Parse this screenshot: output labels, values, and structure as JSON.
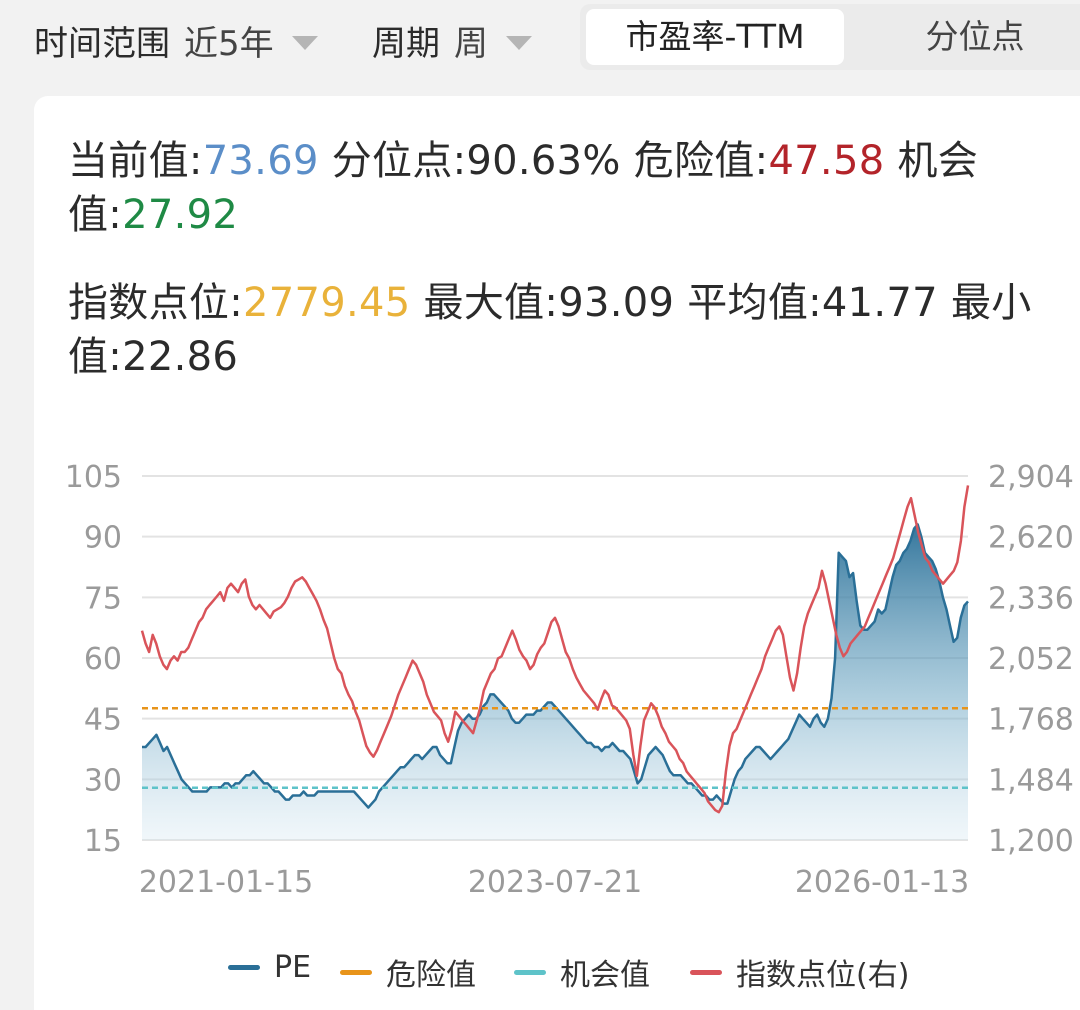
{
  "filters": {
    "range_label": "时间范围",
    "range_value": "近5年",
    "period_label": "周期",
    "period_value": "周"
  },
  "tabs": [
    {
      "label": "市盈率-TTM",
      "active": true
    },
    {
      "label": "分位点",
      "active": false
    }
  ],
  "stats": {
    "current_label": "当前值:",
    "current_value": "73.69",
    "percentile_label": "分位点:",
    "percentile_value": "90.63%",
    "danger_label": "危险值:",
    "danger_value": "47.58",
    "opportunity_label_a": "机会",
    "opportunity_label_b": "值:",
    "opportunity_value": "27.92",
    "index_label": "指数点位:",
    "index_value": "2779.45",
    "max_label": "最大值:",
    "max_value": "93.09",
    "avg_label": "平均值:",
    "avg_value": "41.77",
    "min_label_a": "最小",
    "min_label_b": "值:",
    "min_value": "22.86"
  },
  "colors": {
    "pe": "#2a6f97",
    "danger": "#e8941a",
    "opportunity": "#5ec3c9",
    "index": "#d9545a",
    "current": "#5b8ec8",
    "danger_text": "#b3242a",
    "opportunity_text": "#1f8a45",
    "index_text": "#e9b23a"
  },
  "chart_data": {
    "type": "line",
    "x_ticks": [
      "2021-01-15",
      "2023-07-21",
      "2026-01-13"
    ],
    "y_left": {
      "ticks": [
        "105",
        "90",
        "75",
        "60",
        "45",
        "30",
        "15"
      ],
      "min": 15,
      "max": 105
    },
    "y_right": {
      "ticks": [
        "2,904",
        "2,620",
        "2,336",
        "2,052",
        "1,768",
        "1,484",
        "1,200"
      ],
      "min": 1200,
      "max": 2904
    },
    "grid": true,
    "legend_position": "bottom",
    "series": [
      {
        "name": "PE",
        "axis": "left",
        "style": "area",
        "values": [
          38,
          38,
          39,
          40,
          41,
          39,
          37,
          38,
          36,
          34,
          32,
          30,
          29,
          28,
          27,
          27,
          27,
          27,
          27,
          28,
          28,
          28,
          28,
          29,
          29,
          28,
          29,
          29,
          30,
          31,
          31,
          32,
          31,
          30,
          29,
          29,
          28,
          27,
          27,
          26,
          25,
          25,
          26,
          26,
          26,
          27,
          26,
          26,
          26,
          27,
          27,
          27,
          27,
          27,
          27,
          27,
          27,
          27,
          27,
          27,
          26,
          25,
          24,
          23,
          24,
          25,
          27,
          28,
          29,
          30,
          31,
          32,
          33,
          33,
          34,
          35,
          36,
          36,
          35,
          36,
          37,
          38,
          38,
          36,
          35,
          34,
          34,
          38,
          42,
          44,
          45,
          46,
          45,
          45,
          46,
          48,
          49,
          51,
          51,
          50,
          49,
          48,
          47,
          45,
          44,
          44,
          45,
          46,
          46,
          46,
          47,
          47,
          48,
          49,
          49,
          48,
          47,
          46,
          45,
          44,
          43,
          42,
          41,
          40,
          39,
          39,
          38,
          38,
          37,
          38,
          38,
          39,
          38,
          37,
          37,
          36,
          35,
          32,
          29,
          30,
          33,
          36,
          37,
          38,
          37,
          36,
          34,
          32,
          31,
          31,
          31,
          30,
          29,
          29,
          28,
          27,
          26,
          26,
          25,
          25,
          26,
          25,
          24,
          24,
          27,
          30,
          32,
          33,
          35,
          36,
          37,
          38,
          38,
          37,
          36,
          35,
          36,
          37,
          38,
          39,
          40,
          42,
          44,
          46,
          45,
          44,
          43,
          45,
          46,
          44,
          43,
          45,
          50,
          60,
          86,
          85,
          84,
          80,
          81,
          74,
          68,
          67,
          67,
          68,
          69,
          72,
          71,
          72,
          76,
          80,
          83,
          84,
          86,
          87,
          89,
          92,
          93,
          90,
          86,
          85,
          84,
          82,
          79,
          75,
          72,
          68,
          64,
          65,
          70,
          73,
          74
        ]
      },
      {
        "name": "危险值",
        "axis": "left",
        "style": "dashed",
        "value": 47.58
      },
      {
        "name": "机会值",
        "axis": "left",
        "style": "dashed",
        "value": 27.92
      },
      {
        "name": "指数点位(右)",
        "axis": "right",
        "style": "line",
        "values": [
          2180,
          2120,
          2080,
          2160,
          2120,
          2060,
          2020,
          2000,
          2040,
          2060,
          2040,
          2080,
          2080,
          2100,
          2140,
          2180,
          2220,
          2240,
          2280,
          2300,
          2320,
          2340,
          2360,
          2320,
          2380,
          2400,
          2380,
          2360,
          2400,
          2420,
          2340,
          2300,
          2280,
          2300,
          2280,
          2260,
          2240,
          2270,
          2280,
          2290,
          2310,
          2340,
          2380,
          2410,
          2420,
          2430,
          2410,
          2380,
          2350,
          2320,
          2280,
          2230,
          2190,
          2120,
          2050,
          2000,
          1980,
          1920,
          1880,
          1850,
          1800,
          1760,
          1700,
          1640,
          1610,
          1590,
          1620,
          1660,
          1700,
          1740,
          1780,
          1830,
          1880,
          1920,
          1960,
          2000,
          2040,
          2020,
          1980,
          1940,
          1880,
          1840,
          1800,
          1780,
          1760,
          1700,
          1660,
          1720,
          1800,
          1780,
          1760,
          1740,
          1720,
          1700,
          1760,
          1820,
          1900,
          1940,
          1980,
          2000,
          2050,
          2060,
          2100,
          2140,
          2180,
          2140,
          2090,
          2060,
          2040,
          2000,
          2020,
          2070,
          2100,
          2120,
          2170,
          2220,
          2240,
          2200,
          2140,
          2080,
          2050,
          2000,
          1960,
          1930,
          1900,
          1880,
          1860,
          1840,
          1810,
          1860,
          1900,
          1880,
          1830,
          1820,
          1800,
          1780,
          1760,
          1720,
          1600,
          1500,
          1640,
          1760,
          1800,
          1840,
          1820,
          1780,
          1730,
          1700,
          1660,
          1640,
          1620,
          1580,
          1560,
          1520,
          1500,
          1480,
          1460,
          1440,
          1420,
          1380,
          1360,
          1340,
          1330,
          1360,
          1520,
          1640,
          1700,
          1720,
          1760,
          1800,
          1840,
          1880,
          1920,
          1960,
          2000,
          2060,
          2100,
          2140,
          2180,
          2200,
          2160,
          2060,
          1960,
          1900,
          1980,
          2100,
          2200,
          2260,
          2300,
          2340,
          2380,
          2460,
          2400,
          2320,
          2240,
          2160,
          2100,
          2060,
          2080,
          2120,
          2140,
          2160,
          2180,
          2200,
          2240,
          2280,
          2320,
          2360,
          2400,
          2440,
          2480,
          2520,
          2580,
          2640,
          2700,
          2760,
          2800,
          2720,
          2640,
          2580,
          2520,
          2500,
          2460,
          2440,
          2420,
          2400,
          2420,
          2440,
          2460,
          2500,
          2600,
          2760,
          2860
        ]
      }
    ]
  },
  "legend": [
    {
      "label": "PE",
      "color": "#2a6f97"
    },
    {
      "label": "危险值",
      "color": "#e8941a"
    },
    {
      "label": "机会值",
      "color": "#5ec3c9"
    },
    {
      "label": "指数点位(右)",
      "color": "#d9545a"
    }
  ]
}
